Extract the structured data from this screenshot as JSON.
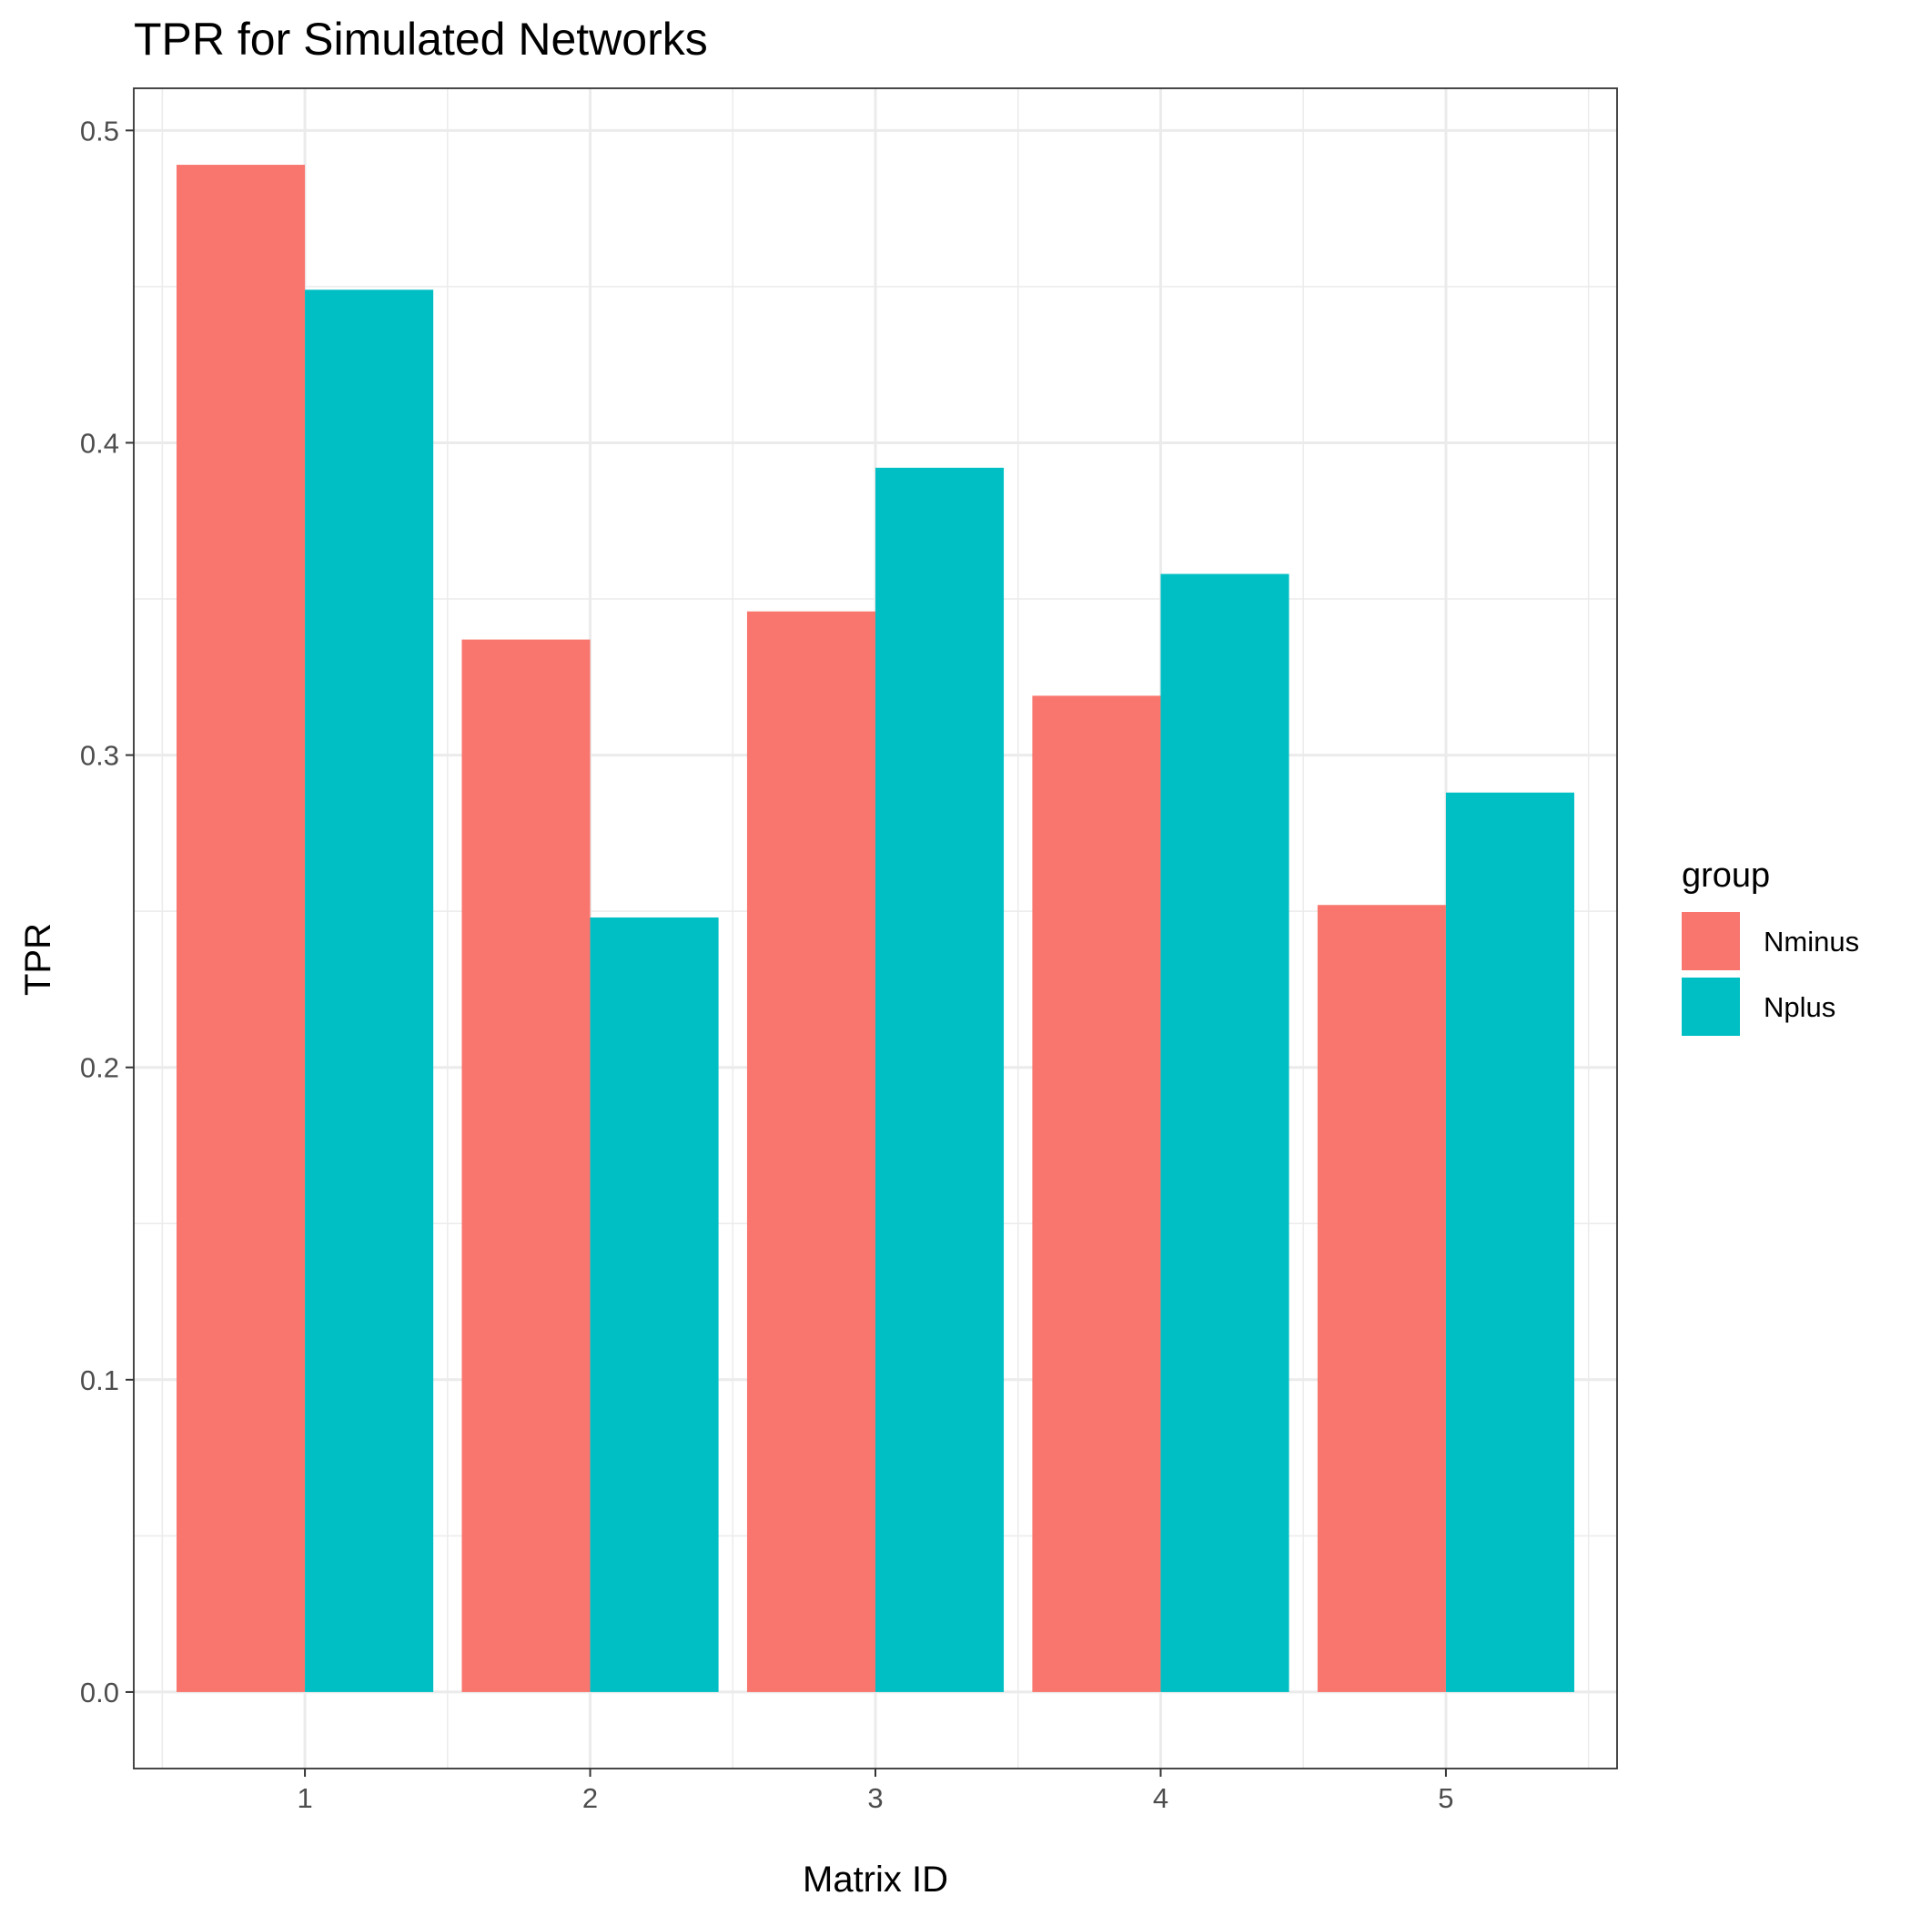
{
  "chart_data": {
    "type": "bar",
    "title": "TPR for Simulated Networks",
    "xlabel": "Matrix ID",
    "ylabel": "TPR",
    "categories": [
      "1",
      "2",
      "3",
      "4",
      "5"
    ],
    "series": [
      {
        "name": "Nminus",
        "color": "#F8766D",
        "values": [
          0.489,
          0.337,
          0.346,
          0.319,
          0.252
        ]
      },
      {
        "name": "Nplus",
        "color": "#00BFC4",
        "values": [
          0.449,
          0.248,
          0.392,
          0.358,
          0.288
        ]
      }
    ],
    "ylim": [
      -0.0245,
      0.5135
    ],
    "yticks": [
      0.0,
      0.1,
      0.2,
      0.3,
      0.4,
      0.5
    ],
    "ytick_labels": [
      "0.0",
      "0.1",
      "0.2",
      "0.3",
      "0.4",
      "0.5"
    ],
    "grid": true,
    "legend": {
      "title": "group",
      "position": "right"
    }
  }
}
